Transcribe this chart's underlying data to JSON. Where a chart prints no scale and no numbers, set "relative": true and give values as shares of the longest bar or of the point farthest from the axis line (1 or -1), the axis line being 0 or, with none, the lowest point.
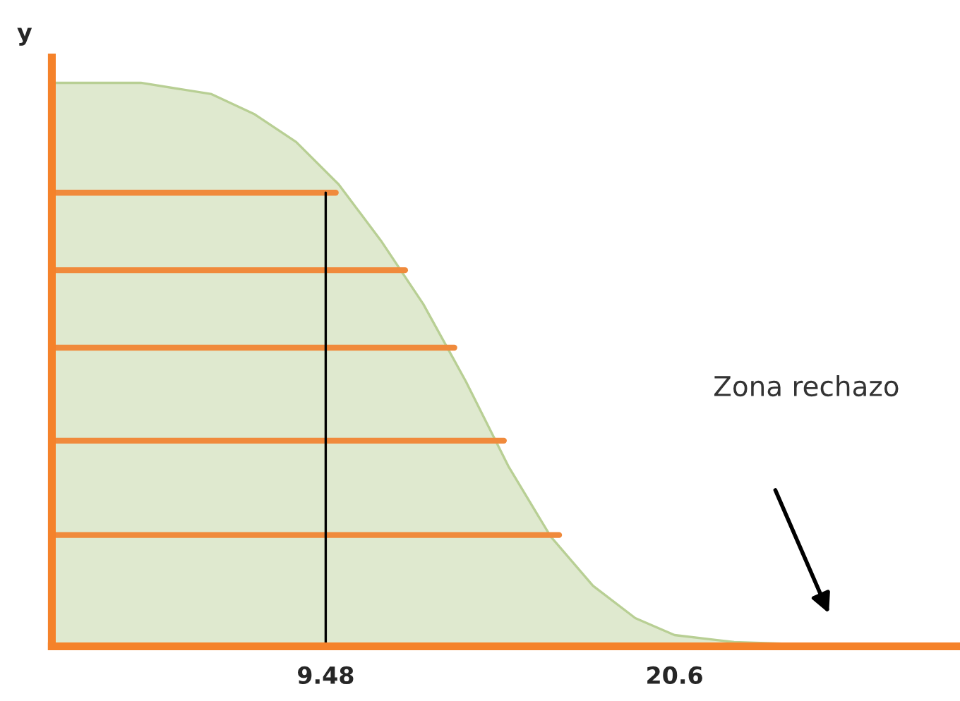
{
  "chart_data": {
    "type": "area",
    "relative": true,
    "ylabel": "y",
    "xlim": [
      0.75,
      29.7
    ],
    "xticks": [
      9.48,
      20.6
    ],
    "grid": false,
    "series": [
      {
        "color": "#dfe9cf",
        "x": [
          0.75,
          3.59,
          5.84,
          7.19,
          8.54,
          9.89,
          11.24,
          12.59,
          13.95,
          15.3,
          16.65,
          18.0,
          19.35,
          20.6,
          22.5,
          25.2,
          29.7
        ],
        "values": [
          1.0,
          1.0,
          0.98,
          0.945,
          0.895,
          0.82,
          0.72,
          0.6075,
          0.47,
          0.32,
          0.195,
          0.1075,
          0.05,
          0.02,
          0.0075,
          0.0025,
          0.0025
        ]
      },
      {
        "type": "line",
        "color": "#f08a3c",
        "x": [
          0.75,
          9.8
        ],
        "values": [
          0.805,
          0.805
        ]
      },
      {
        "type": "line",
        "color": "#f08a3c",
        "x": [
          0.75,
          12.01
        ],
        "values": [
          0.6675,
          0.6675
        ]
      },
      {
        "type": "line",
        "color": "#f08a3c",
        "x": [
          0.75,
          13.58
        ],
        "values": [
          0.53,
          0.53
        ]
      },
      {
        "type": "line",
        "color": "#f08a3c",
        "x": [
          0.75,
          15.16
        ],
        "values": [
          0.365,
          0.365
        ]
      },
      {
        "type": "line",
        "color": "#f08a3c",
        "x": [
          0.75,
          16.92
        ],
        "values": [
          0.1975,
          0.1975
        ]
      },
      {
        "type": "line",
        "color": "#000000",
        "x": [
          9.48,
          9.48
        ],
        "values": [
          0,
          0.805
        ]
      }
    ],
    "annotations": [
      "Zona rechazo"
    ]
  }
}
